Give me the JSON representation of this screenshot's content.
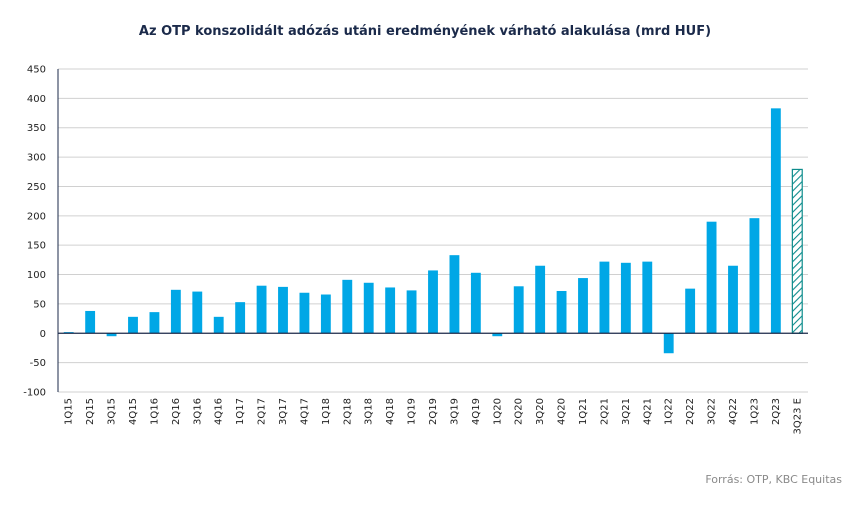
{
  "chart_data": {
    "type": "bar",
    "title": "Az OTP konszolidált adózás utáni eredményének várható alakulása (mrd HUF)",
    "xlabel": "",
    "ylabel": "",
    "ylim": [
      -100,
      450
    ],
    "yticks": [
      450,
      400,
      350,
      300,
      250,
      200,
      150,
      100,
      50,
      0,
      -50,
      -100
    ],
    "grid": true,
    "categories": [
      "1Q15",
      "2Q15",
      "3Q15",
      "4Q15",
      "1Q16",
      "2Q16",
      "3Q16",
      "4Q16",
      "1Q17",
      "2Q17",
      "3Q17",
      "4Q17",
      "1Q18",
      "2Q18",
      "3Q18",
      "4Q18",
      "1Q19",
      "2Q19",
      "3Q19",
      "4Q19",
      "1Q20",
      "2Q20",
      "3Q20",
      "4Q20",
      "1Q21",
      "2Q21",
      "3Q21",
      "4Q21",
      "1Q22",
      "2Q22",
      "3Q22",
      "4Q22",
      "1Q23",
      "2Q23",
      "3Q23 E"
    ],
    "values": [
      2,
      38,
      -5,
      28,
      36,
      74,
      71,
      28,
      53,
      81,
      79,
      69,
      66,
      91,
      86,
      78,
      73,
      107,
      133,
      103,
      -5,
      80,
      115,
      72,
      94,
      122,
      120,
      122,
      -34,
      76,
      190,
      115,
      196,
      383,
      279
    ],
    "estimate_index": 34,
    "colors": {
      "bar": "#00a7e6",
      "estimate_hatch": "#0d8c8c",
      "zero_line": "#1b2a4a",
      "grid": "#d0d0d0",
      "axis": "#1b2a4a"
    }
  },
  "source": "Forrás: OTP, KBC Equitas"
}
